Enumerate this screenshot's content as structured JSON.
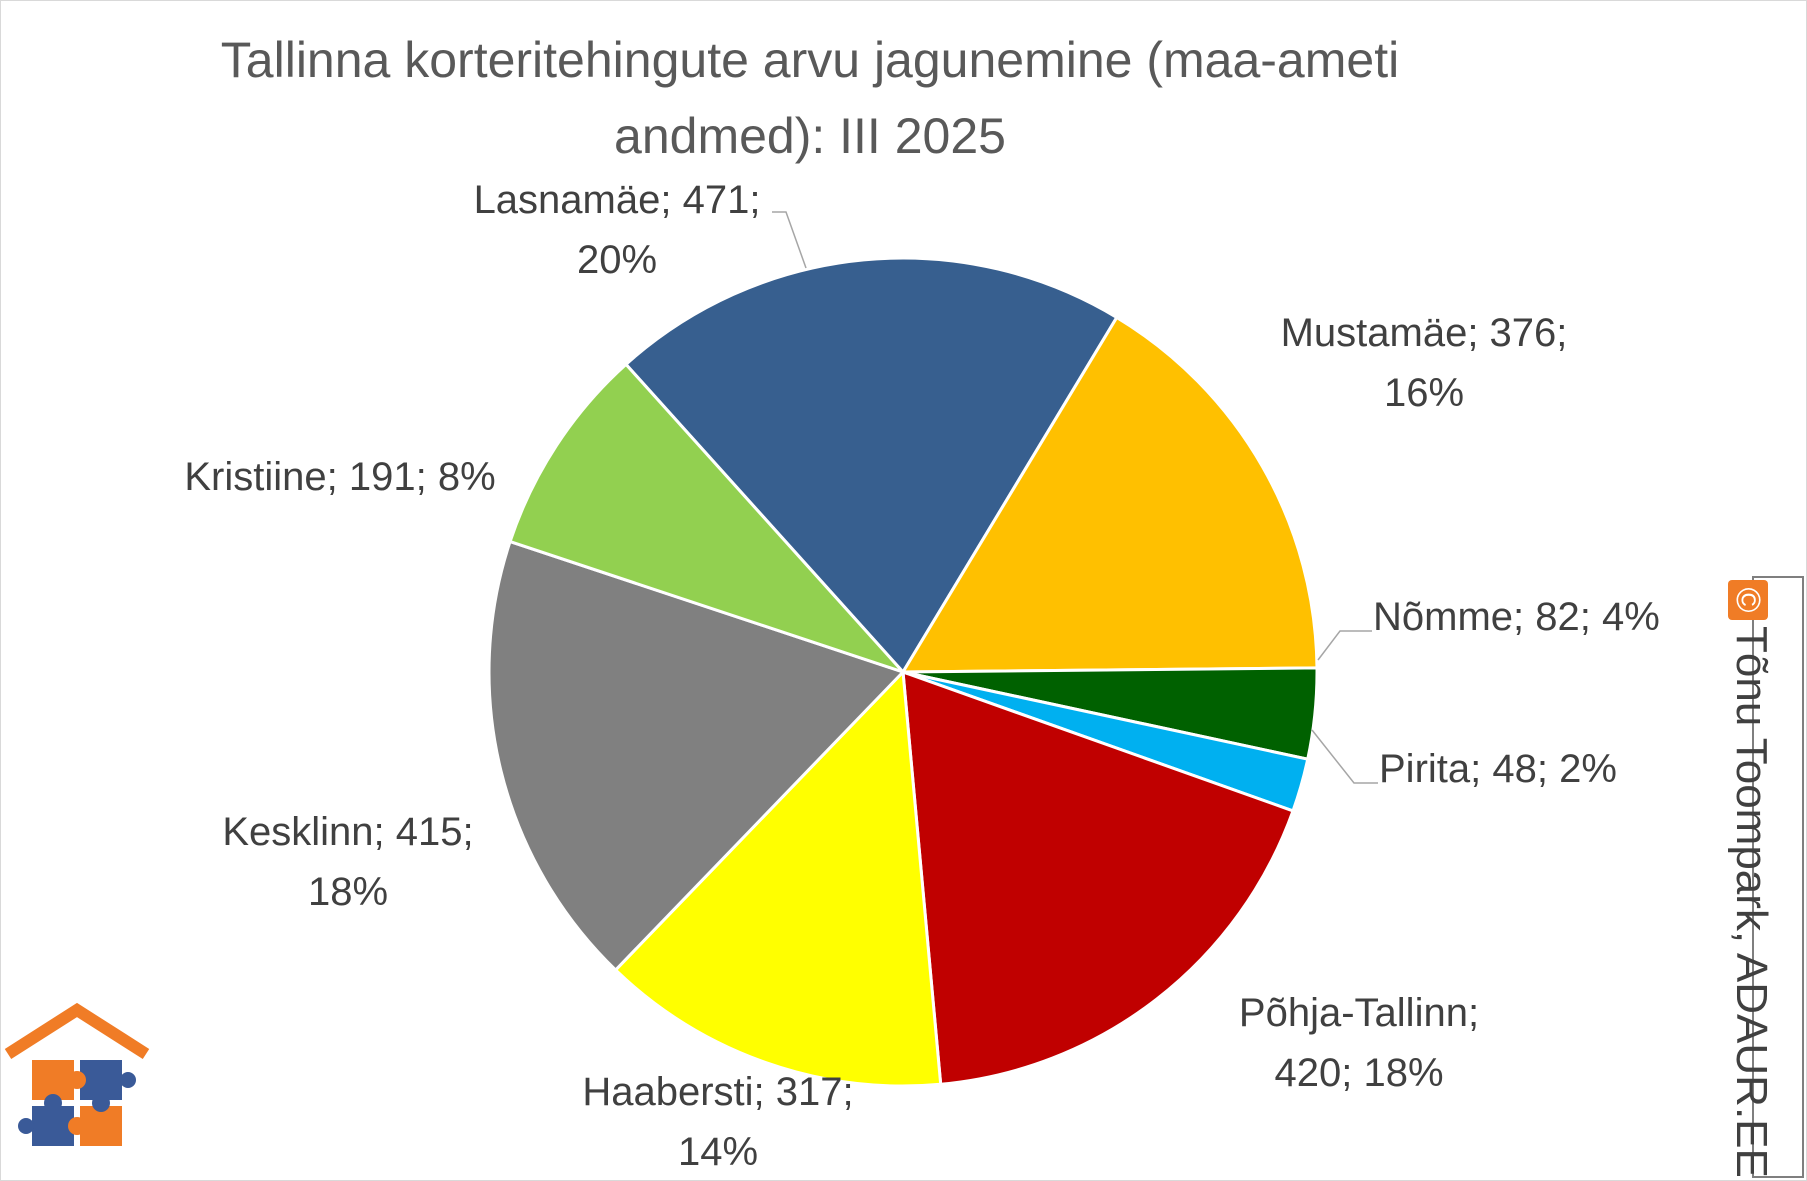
{
  "title": "Tallinna korteritehingute arvu jagunemine (maa-ameti andmed): III 2025",
  "chart_data": {
    "type": "pie",
    "title": "Tallinna korteritehingute arvu jagunemine (maa-ameti andmed): III 2025",
    "slices": [
      {
        "name": "Lasnamäe",
        "value": 471,
        "percent": "20%",
        "color": "#375F8F",
        "label_lines": [
          "Lasnamäe; 471;",
          "20%"
        ]
      },
      {
        "name": "Mustamäe",
        "value": 376,
        "percent": "16%",
        "color": "#FFC000",
        "label_lines": [
          "Mustamäe; 376;",
          "16%"
        ]
      },
      {
        "name": "Nõmme",
        "value": 82,
        "percent": "4%",
        "color": "#006100",
        "label_lines": [
          "Nõmme; 82; 4%"
        ]
      },
      {
        "name": "Pirita",
        "value": 48,
        "percent": "2%",
        "color": "#00B0F0",
        "label_lines": [
          "Pirita; 48; 2%"
        ]
      },
      {
        "name": "Põhja-Tallinn",
        "value": 420,
        "percent": "18%",
        "color": "#C00000",
        "label_lines": [
          "Põhja-Tallinn;",
          "420; 18%"
        ]
      },
      {
        "name": "Haabersti",
        "value": 317,
        "percent": "14%",
        "color": "#FFFF00",
        "label_lines": [
          "Haabersti; 317;",
          "14%"
        ]
      },
      {
        "name": "Kesklinn",
        "value": 415,
        "percent": "18%",
        "color": "#808080",
        "label_lines": [
          "Kesklinn; 415;",
          "18%"
        ]
      },
      {
        "name": "Kristiine",
        "value": 191,
        "percent": "8%",
        "color": "#92D050",
        "label_lines": [
          "Kristiine; 191; 8%"
        ]
      }
    ],
    "legend": "none",
    "data_labels": "outside with leader lines"
  },
  "watermark": {
    "symbol": "©",
    "text": "Tõnu Toompark, ADAUR.EE",
    "logo": "house-puzzle-icon",
    "accent_color": "#F07C26",
    "puzzle_blue": "#3A5A98"
  }
}
